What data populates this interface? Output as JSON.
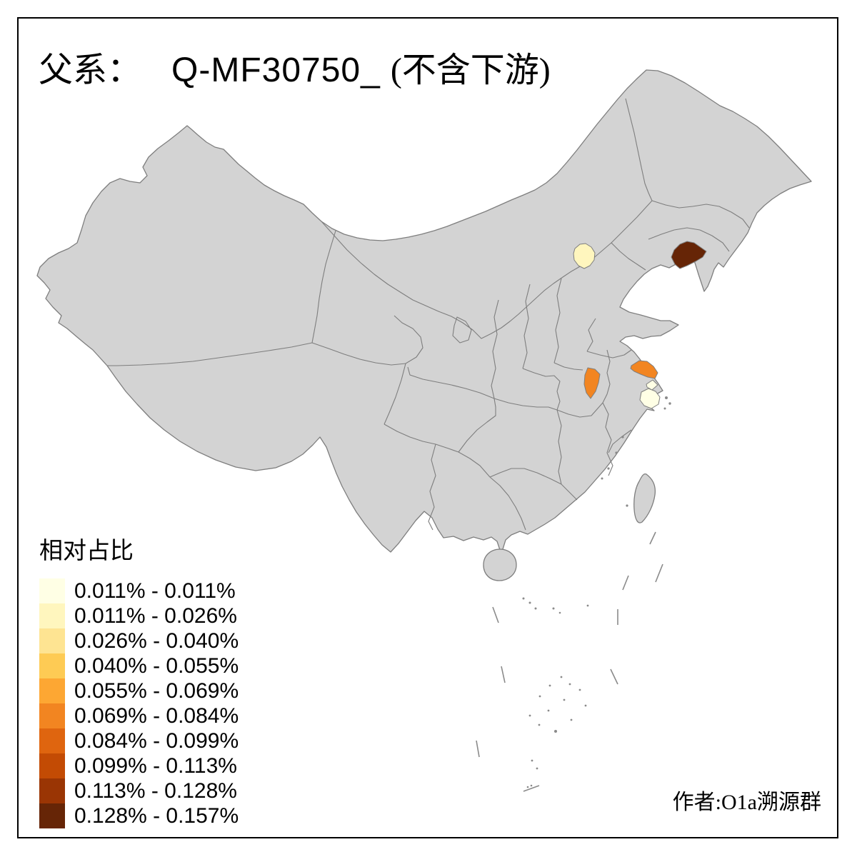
{
  "title": {
    "prefix": "父系：",
    "lineage": "Q-MF30750_",
    "suffix": "(不含下游)",
    "full": "父系： Q-MF30750_ (不含下游)"
  },
  "legend": {
    "title": "相对占比",
    "classes": [
      {
        "label": "0.011% - 0.011%",
        "color": "#FFFFE5"
      },
      {
        "label": "0.011% - 0.026%",
        "color": "#FFF6BE"
      },
      {
        "label": "0.026% - 0.040%",
        "color": "#FEE492"
      },
      {
        "label": "0.040% - 0.055%",
        "color": "#FECB54"
      },
      {
        "label": "0.055% - 0.069%",
        "color": "#FDA733"
      },
      {
        "label": "0.069% - 0.084%",
        "color": "#F28521"
      },
      {
        "label": "0.084% - 0.099%",
        "color": "#DF650F"
      },
      {
        "label": "0.099% - 0.113%",
        "color": "#C34B04"
      },
      {
        "label": "0.113% - 0.128%",
        "color": "#9A3504"
      },
      {
        "label": "0.128% - 0.157%",
        "color": "#662506"
      }
    ]
  },
  "attribution": {
    "text": "作者:O1a溯源群"
  },
  "map": {
    "land_color": "#D3D3D3",
    "boundary_color": "#7E7E7E",
    "sea_color": "#FFFFFF",
    "frame_color": "#000000",
    "regions": [
      {
        "id": "beijing",
        "class_label": "0.011% - 0.026%",
        "color": "#FFF6BE"
      },
      {
        "id": "shanghai",
        "class_label": "0.011% - 0.011%",
        "color": "#FFFFE5"
      },
      {
        "id": "central-anhui",
        "class_label": "0.069% - 0.084%",
        "color": "#F28521"
      },
      {
        "id": "central-jiangsu",
        "class_label": "0.069% - 0.084%",
        "color": "#F28521"
      },
      {
        "id": "liaoning-coast",
        "class_label": "0.128% - 0.157%",
        "color": "#662506"
      }
    ]
  },
  "chart_data": {
    "type": "choropleth-map",
    "title": "父系： Q-MF30750_ (不含下游)",
    "legend_title": "相对占比",
    "legend_position": "bottom-left",
    "base_map": "China with province boundaries, unshaded prefectures gray",
    "classes": [
      {
        "range": "0.011% - 0.011%",
        "color": "#FFFFE5"
      },
      {
        "range": "0.011% - 0.026%",
        "color": "#FFF6BE"
      },
      {
        "range": "0.026% - 0.040%",
        "color": "#FEE492"
      },
      {
        "range": "0.040% - 0.055%",
        "color": "#FECB54"
      },
      {
        "range": "0.055% - 0.069%",
        "color": "#FDA733"
      },
      {
        "range": "0.069% - 0.084%",
        "color": "#F28521"
      },
      {
        "range": "0.084% - 0.099%",
        "color": "#DF650F"
      },
      {
        "range": "0.099% - 0.113%",
        "color": "#C34B04"
      },
      {
        "range": "0.113% - 0.128%",
        "color": "#9A3504"
      },
      {
        "range": "0.128% - 0.157%",
        "color": "#662506"
      }
    ],
    "shaded_regions": [
      {
        "location": "Beijing area prefecture",
        "value_range": "0.011% - 0.026%"
      },
      {
        "location": "Shanghai area prefecture",
        "value_range": "0.011% - 0.011%"
      },
      {
        "location": "Central Anhui prefecture",
        "value_range": "0.069% - 0.084%"
      },
      {
        "location": "Central Jiangsu prefecture",
        "value_range": "0.069% - 0.084%"
      },
      {
        "location": "Coastal Liaoning prefecture",
        "value_range": "0.128% - 0.157%"
      }
    ]
  }
}
